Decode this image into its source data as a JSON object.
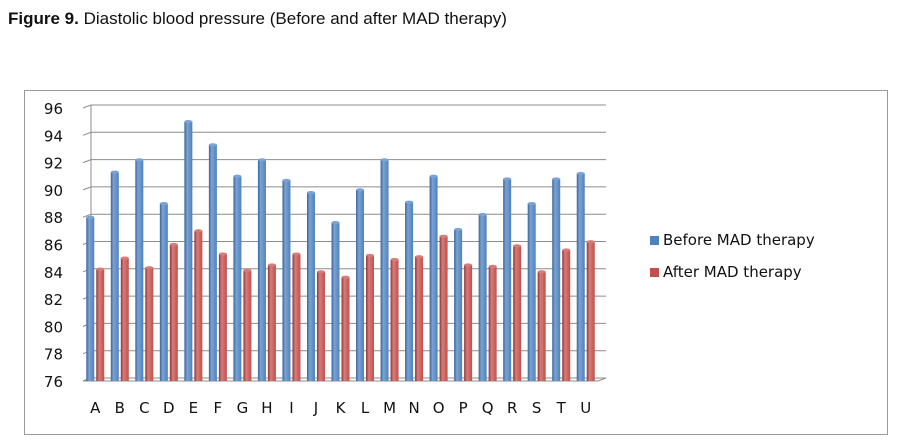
{
  "figure": {
    "label": "Figure 9.",
    "caption": "Diastolic blood pressure (Before and after MAD therapy)"
  },
  "colors": {
    "before": "#4f81bd",
    "before_light": "#7ba3d4",
    "before_dark": "#3a6396",
    "after": "#c0504d",
    "after_light": "#d67d7a",
    "after_dark": "#8e3432",
    "grid": "#8c8c8c"
  },
  "chart_data": {
    "type": "bar",
    "categories": [
      "A",
      "B",
      "C",
      "D",
      "E",
      "F",
      "G",
      "H",
      "I",
      "J",
      "K",
      "L",
      "M",
      "N",
      "O",
      "P",
      "Q",
      "R",
      "S",
      "T",
      "U"
    ],
    "series": [
      {
        "name": "Before MAD therapy",
        "values": [
          88.0,
          91.3,
          92.2,
          89.0,
          95.0,
          93.3,
          91.0,
          92.2,
          90.7,
          89.8,
          87.6,
          90.0,
          92.2,
          89.1,
          91.0,
          87.1,
          88.2,
          90.8,
          89.0,
          90.8,
          91.2
        ]
      },
      {
        "name": "After MAD therapy",
        "values": [
          84.2,
          85.0,
          84.3,
          86.0,
          87.0,
          85.3,
          84.1,
          84.5,
          85.3,
          84.0,
          83.6,
          85.2,
          84.9,
          85.1,
          86.6,
          84.5,
          84.4,
          85.9,
          84.0,
          85.6,
          86.2
        ]
      }
    ],
    "ylim": [
      76,
      96
    ],
    "yticks": [
      96,
      94,
      92,
      90,
      88,
      86,
      84,
      82,
      80,
      78,
      76
    ],
    "grid": true,
    "legend_position": "right",
    "bar_style": "3d-cylinder"
  }
}
